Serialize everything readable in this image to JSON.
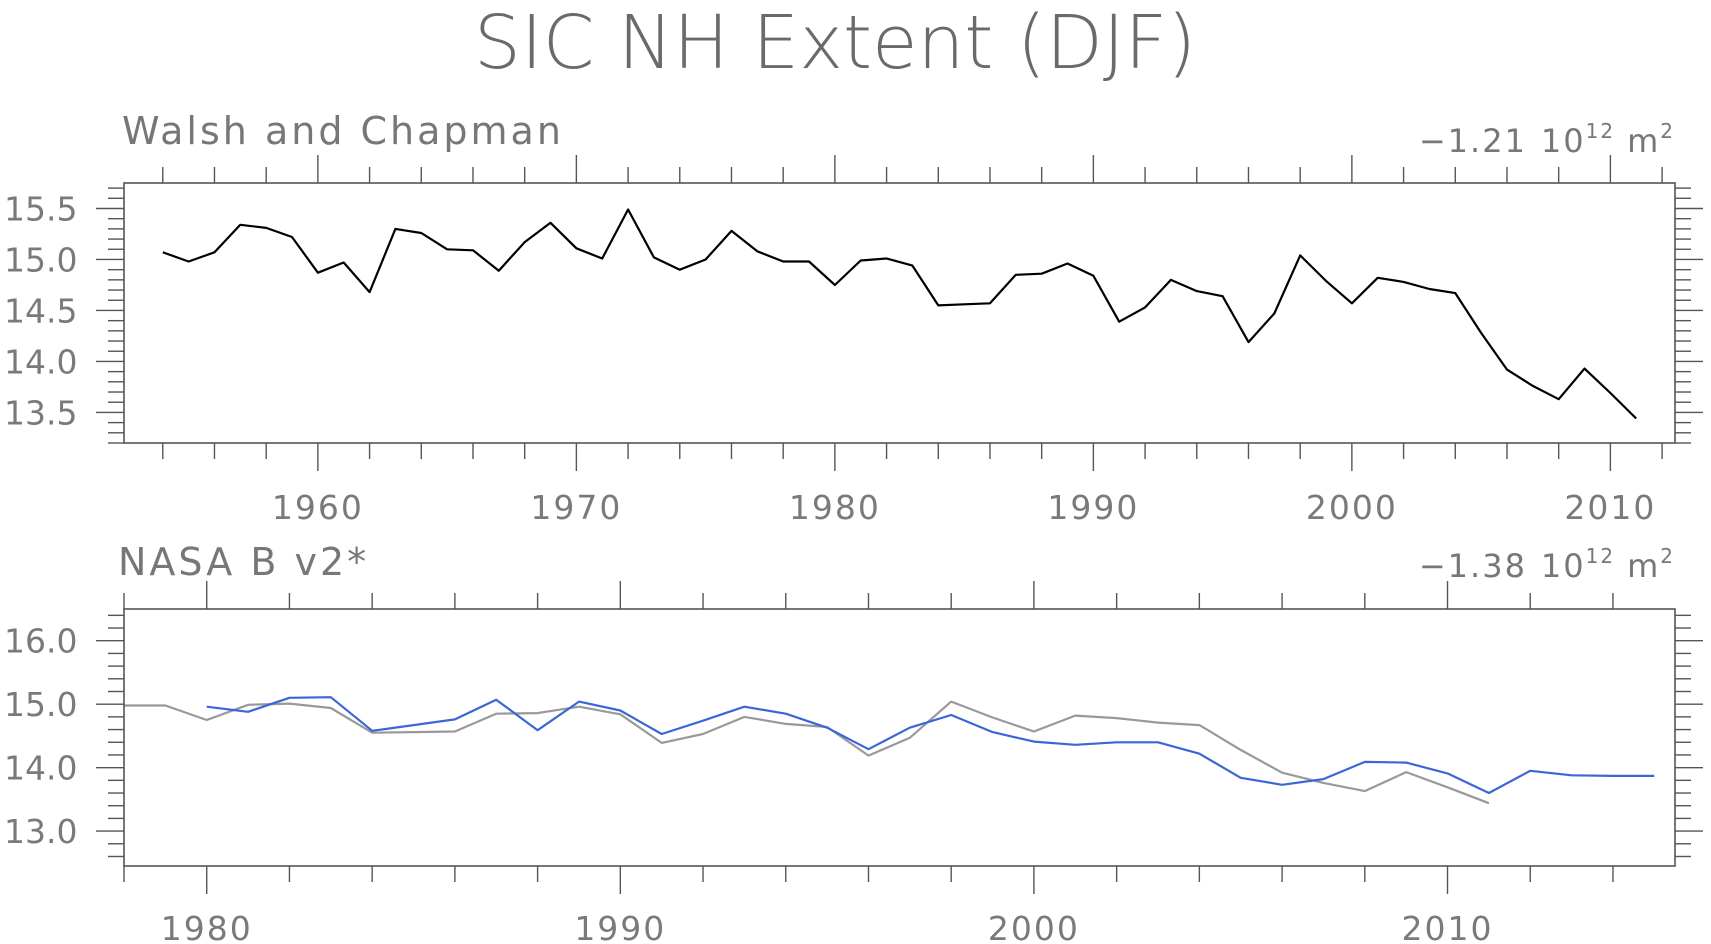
{
  "title": "SIC NH Extent (DJF)",
  "chart_data": [
    {
      "type": "line",
      "subtitle": "Walsh and Chapman",
      "trend_value": "−1.21",
      "trend_base": "10",
      "trend_exponent": "12",
      "trend_unit": "m",
      "trend_unit_exponent": "2",
      "xlim": [
        1952.5,
        2012.5
      ],
      "ylim": [
        13.2,
        15.75
      ],
      "x_ticks": [
        1960,
        1970,
        1980,
        1990,
        2000,
        2010
      ],
      "x_tick_labels": [
        "1960",
        "1970",
        "1980",
        "1990",
        "2000",
        "2010"
      ],
      "y_ticks": [
        13.5,
        14.0,
        14.5,
        15.0,
        15.5
      ],
      "y_tick_labels": [
        "13.5",
        "14.0",
        "14.5",
        "15.0",
        "15.5"
      ],
      "x_labels_position": "bottom",
      "grid": false,
      "series": [
        {
          "color": "#000000",
          "x": [
            1954,
            1955,
            1956,
            1957,
            1958,
            1959,
            1960,
            1961,
            1962,
            1963,
            1964,
            1965,
            1966,
            1967,
            1968,
            1969,
            1970,
            1971,
            1972,
            1973,
            1974,
            1975,
            1976,
            1977,
            1978,
            1979,
            1980,
            1981,
            1982,
            1983,
            1984,
            1985,
            1986,
            1987,
            1988,
            1989,
            1990,
            1991,
            1992,
            1993,
            1994,
            1995,
            1996,
            1997,
            1998,
            1999,
            2000,
            2001,
            2002,
            2003,
            2004,
            2005,
            2006,
            2007,
            2008,
            2009,
            2010,
            2011
          ],
          "y": [
            15.07,
            14.98,
            15.07,
            15.34,
            15.31,
            15.22,
            14.87,
            14.97,
            14.68,
            15.3,
            15.26,
            15.1,
            15.09,
            14.89,
            15.17,
            15.36,
            15.11,
            15.01,
            15.49,
            15.02,
            14.9,
            15.0,
            15.28,
            15.08,
            14.98,
            14.98,
            14.75,
            14.99,
            15.01,
            14.94,
            14.55,
            14.56,
            14.57,
            14.85,
            14.86,
            14.96,
            14.84,
            14.39,
            14.53,
            14.8,
            14.69,
            14.64,
            14.19,
            14.47,
            15.04,
            14.79,
            14.57,
            14.82,
            14.78,
            14.71,
            14.67,
            14.28,
            13.92,
            13.76,
            13.63,
            13.93,
            13.69,
            13.44
          ]
        }
      ]
    },
    {
      "type": "line",
      "subtitle": "NASA B v2*",
      "trend_value": "−1.38",
      "trend_base": "10",
      "trend_exponent": "12",
      "trend_unit": "m",
      "trend_unit_exponent": "2",
      "xlim": [
        1978,
        2015.5
      ],
      "ylim": [
        12.45,
        16.5
      ],
      "x_ticks": [
        1980,
        1990,
        2000,
        2010
      ],
      "x_tick_labels": [
        "1980",
        "1990",
        "2000",
        "2010"
      ],
      "y_ticks": [
        13.0,
        14.0,
        15.0,
        16.0
      ],
      "y_tick_labels": [
        "13.0",
        "14.0",
        "15.0",
        "16.0"
      ],
      "x_labels_position": "bottom",
      "grid": false,
      "series": [
        {
          "color": "#999999",
          "x": [
            1978,
            1979,
            1980,
            1981,
            1982,
            1983,
            1984,
            1985,
            1986,
            1987,
            1988,
            1989,
            1990,
            1991,
            1992,
            1993,
            1994,
            1995,
            1996,
            1997,
            1998,
            1999,
            2000,
            2001,
            2002,
            2003,
            2004,
            2005,
            2006,
            2007,
            2008,
            2009,
            2010,
            2011
          ],
          "y": [
            14.98,
            14.98,
            14.75,
            14.99,
            15.01,
            14.94,
            14.55,
            14.56,
            14.57,
            14.85,
            14.86,
            14.96,
            14.84,
            14.39,
            14.53,
            14.8,
            14.69,
            14.64,
            14.19,
            14.47,
            15.04,
            14.79,
            14.57,
            14.82,
            14.78,
            14.71,
            14.67,
            14.28,
            13.92,
            13.76,
            13.63,
            13.93,
            13.69,
            13.44
          ]
        },
        {
          "color": "#3a66d8",
          "x": [
            1980,
            1981,
            1982,
            1983,
            1984,
            1985,
            1986,
            1987,
            1988,
            1989,
            1990,
            1991,
            1992,
            1993,
            1994,
            1995,
            1996,
            1997,
            1998,
            1999,
            2000,
            2001,
            2002,
            2003,
            2004,
            2005,
            2006,
            2007,
            2008,
            2009,
            2010,
            2011,
            2012,
            2013,
            2014,
            2015
          ],
          "y": [
            14.96,
            14.88,
            15.1,
            15.11,
            14.58,
            14.67,
            14.76,
            15.07,
            14.59,
            15.04,
            14.9,
            14.53,
            14.74,
            14.96,
            14.85,
            14.63,
            14.29,
            14.63,
            14.83,
            14.56,
            14.41,
            14.36,
            14.4,
            14.4,
            14.22,
            13.84,
            13.73,
            13.82,
            14.09,
            14.08,
            13.91,
            13.6,
            13.95,
            13.88,
            13.87,
            13.87
          ]
        }
      ]
    }
  ]
}
